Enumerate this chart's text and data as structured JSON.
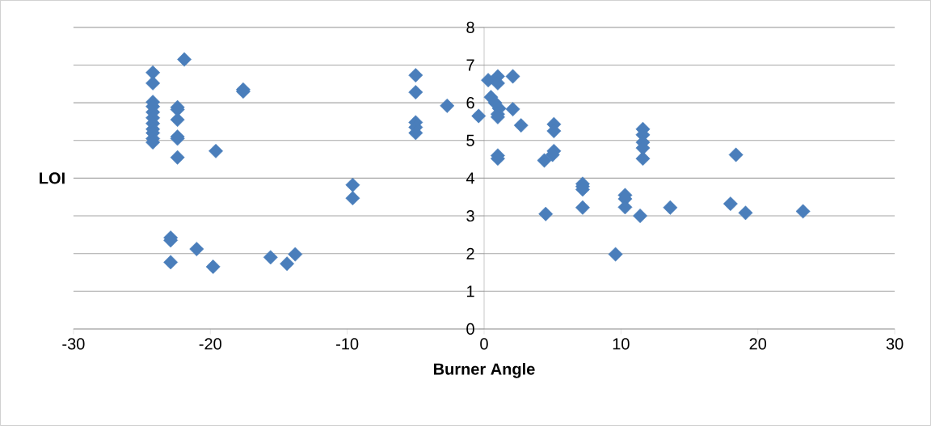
{
  "chart_data": {
    "type": "scatter",
    "xlabel": "Burner Angle",
    "ylabel": "LOI",
    "color": "#4a7ebb",
    "marker": "diamond",
    "grid": "y",
    "xlim": [
      -30,
      30
    ],
    "ylim": [
      0,
      8
    ],
    "xticks": [
      -30,
      -20,
      -10,
      0,
      10,
      20,
      30
    ],
    "yticks": [
      0,
      1,
      2,
      3,
      4,
      5,
      6,
      7,
      8
    ],
    "x": [
      -24.2,
      -24.2,
      -24.2,
      -24.2,
      -24.2,
      -24.2,
      -24.2,
      -24.2,
      -24.2,
      -24.2,
      -24.2,
      -21.9,
      -22.4,
      -22.4,
      -22.4,
      -22.4,
      -22.4,
      -22.4,
      -19.6,
      -17.6,
      -17.6,
      -22.9,
      -22.9,
      -22.9,
      -21.0,
      -19.8,
      -15.6,
      -14.4,
      -13.8,
      -9.6,
      -9.6,
      -5.0,
      -5.0,
      -5.0,
      -5.0,
      -5.0,
      -2.7,
      -0.4,
      0.3,
      1.0,
      1.0,
      0.5,
      0.8,
      1.1,
      1.0,
      1.0,
      2.1,
      2.1,
      2.7,
      1.0,
      1.0,
      4.4,
      4.5,
      5.1,
      5.1,
      5.1,
      5.0,
      7.2,
      7.2,
      7.2,
      7.2,
      9.6,
      10.3,
      10.3,
      10.3,
      11.4,
      11.6,
      11.6,
      11.6,
      11.6,
      11.6,
      13.6,
      18.0,
      18.4,
      19.1,
      23.3
    ],
    "values": [
      6.8,
      6.52,
      6.02,
      5.9,
      5.75,
      5.6,
      5.45,
      5.3,
      5.2,
      5.05,
      4.95,
      7.15,
      5.88,
      5.82,
      5.55,
      5.1,
      5.05,
      4.55,
      4.72,
      6.35,
      6.3,
      2.42,
      2.35,
      1.77,
      2.12,
      1.65,
      1.9,
      1.73,
      1.98,
      3.82,
      3.47,
      6.73,
      6.28,
      5.48,
      5.35,
      5.2,
      5.92,
      5.65,
      6.6,
      6.7,
      6.52,
      6.15,
      6.0,
      5.85,
      5.7,
      5.62,
      6.7,
      5.83,
      5.4,
      4.6,
      4.52,
      4.47,
      3.05,
      5.43,
      5.25,
      4.72,
      4.62,
      3.85,
      3.78,
      3.7,
      3.22,
      1.98,
      3.55,
      3.45,
      3.23,
      3.0,
      5.3,
      5.15,
      4.95,
      4.8,
      4.52,
      3.22,
      3.32,
      4.62,
      3.08,
      3.12
    ]
  }
}
